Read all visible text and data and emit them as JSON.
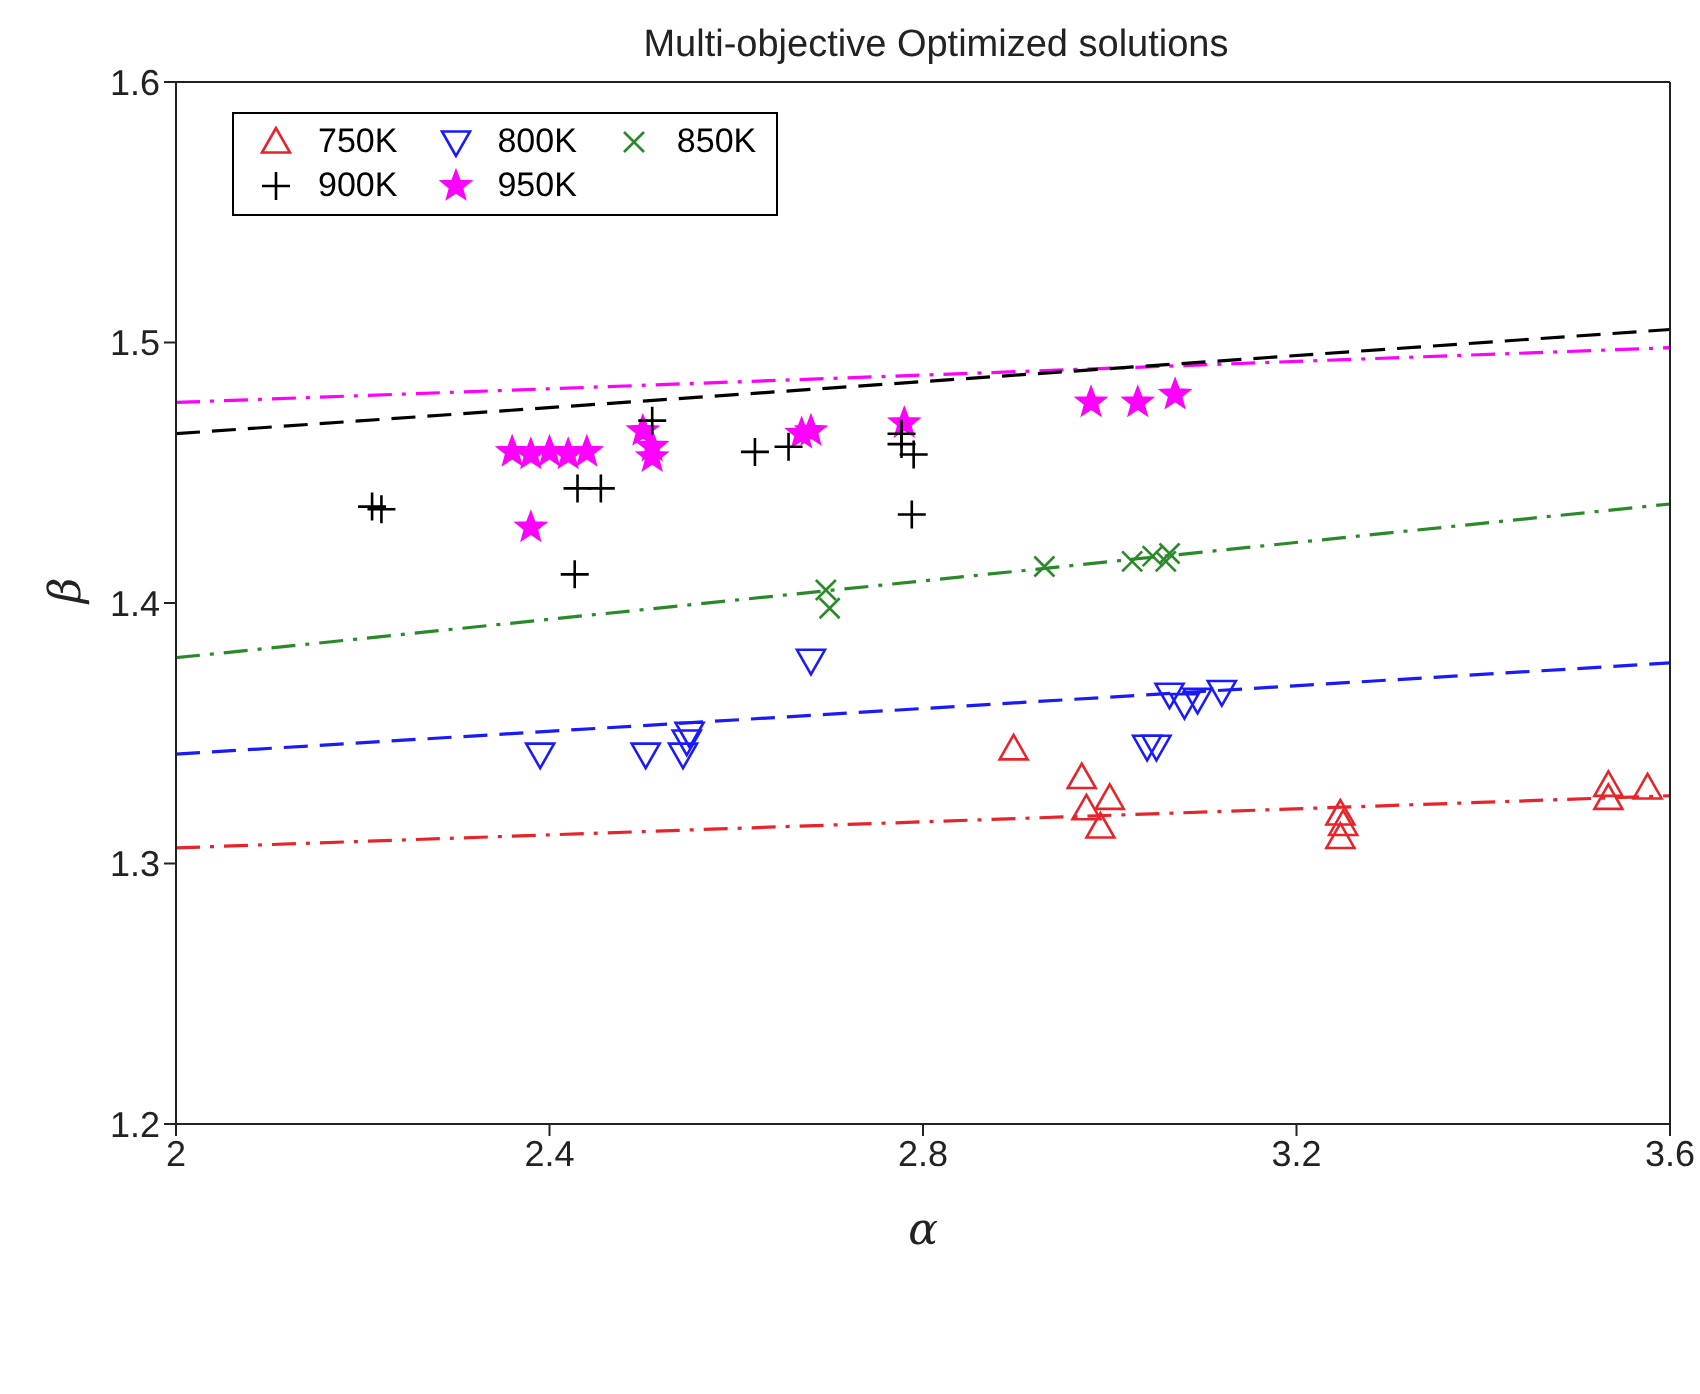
{
  "chart_data": {
    "type": "scatter",
    "title": "Multi-objective Optimized solutions",
    "xlabel": "α",
    "ylabel": "β",
    "xlim": [
      2,
      3.6
    ],
    "xticks": [
      2,
      2.4,
      2.8,
      3.2,
      3.6
    ],
    "ylim": [
      1.2,
      1.6
    ],
    "yticks": [
      1.2,
      1.3,
      1.4,
      1.5,
      1.6
    ],
    "grid": false,
    "legend": "top left",
    "series": [
      {
        "name": "750K",
        "color": "#e8242a",
        "marker": "triangle",
        "x": [
          2.897,
          2.97,
          3.0,
          2.975,
          2.99,
          3.247,
          3.247,
          3.25,
          3.534,
          3.534,
          3.576
        ],
        "values": [
          1.344,
          1.333,
          1.325,
          1.321,
          1.314,
          1.319,
          1.31,
          1.315,
          1.33,
          1.325,
          1.329
        ]
      },
      {
        "name": "800K",
        "color": "#1a1aff",
        "marker": "triangle-down",
        "x": [
          2.39,
          2.503,
          2.543,
          2.547,
          2.55,
          2.68,
          3.064,
          3.094,
          3.12,
          3.08,
          3.05,
          3.04
        ],
        "values": [
          1.342,
          1.342,
          1.342,
          1.347,
          1.35,
          1.378,
          1.365,
          1.363,
          1.366,
          1.361,
          1.345,
          1.345
        ]
      },
      {
        "name": "850K",
        "color": "#2a8a2a",
        "marker": "cross",
        "x": [
          2.696,
          2.7,
          2.93,
          3.024,
          3.046,
          3.064,
          3.06
        ],
        "values": [
          1.405,
          1.398,
          1.414,
          1.416,
          1.418,
          1.419,
          1.416
        ]
      },
      {
        "name": "900K",
        "color": "#000000",
        "marker": "plus",
        "x": [
          2.21,
          2.22,
          2.43,
          2.455,
          2.51,
          2.427,
          2.62,
          2.656,
          2.777,
          2.777,
          2.79,
          2.788
        ],
        "values": [
          1.437,
          1.436,
          1.444,
          1.444,
          1.47,
          1.411,
          1.458,
          1.46,
          1.465,
          1.461,
          1.457,
          1.434
        ]
      },
      {
        "name": "950K",
        "color": "#ff00ff",
        "marker": "star",
        "x": [
          2.36,
          2.38,
          2.4,
          2.42,
          2.44,
          2.38,
          2.5,
          2.51,
          2.51,
          2.67,
          2.68,
          2.78,
          2.98,
          3.03,
          3.07
        ],
        "values": [
          1.458,
          1.457,
          1.458,
          1.457,
          1.458,
          1.429,
          1.466,
          1.456,
          1.46,
          1.465,
          1.466,
          1.469,
          1.477,
          1.477,
          1.48
        ]
      },
      {
        "type": "line",
        "color": "#e8242a",
        "line_style": "dashdot",
        "x": [
          2,
          3.6
        ],
        "values": [
          1.306,
          1.326
        ]
      },
      {
        "type": "line",
        "color": "#1a1aff",
        "line_style": "dashed",
        "x": [
          2,
          3.6
        ],
        "values": [
          1.342,
          1.377
        ]
      },
      {
        "type": "line",
        "color": "#2a8a2a",
        "line_style": "dashdot",
        "x": [
          2,
          3.6
        ],
        "values": [
          1.379,
          1.438
        ]
      },
      {
        "type": "line",
        "color": "#000000",
        "line_style": "dashed",
        "x": [
          2,
          3.6
        ],
        "values": [
          1.465,
          1.505
        ]
      },
      {
        "type": "line",
        "color": "#ff00ff",
        "line_style": "dashdot",
        "x": [
          2,
          3.6
        ],
        "values": [
          1.477,
          1.498
        ]
      }
    ]
  }
}
